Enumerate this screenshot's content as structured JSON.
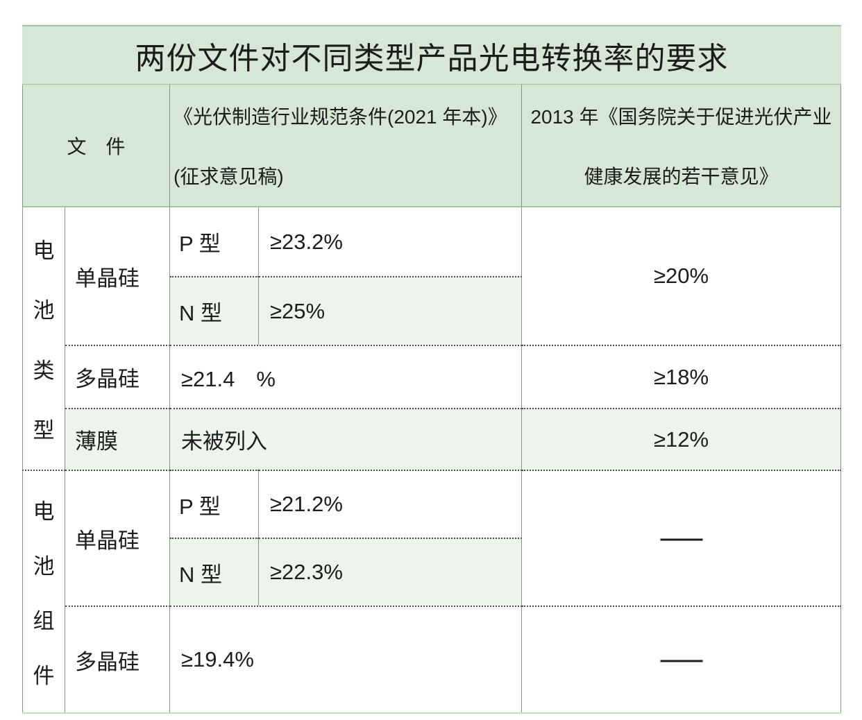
{
  "title": "两份文件对不同类型产品光电转换率的要求",
  "header": {
    "files_label": "文　件",
    "doc_2021_line1": "《光伏制造行业规范条件(2021 年本)》",
    "doc_2021_line2": "(征求意见稿)",
    "doc_2013_line1": "2013 年《国务院关于促进光伏产业",
    "doc_2013_line2": "健康发展的若干意见》"
  },
  "battery_cells": {
    "category": [
      "电",
      "池",
      "类",
      "型"
    ],
    "mono_label": "单晶硅",
    "p_label": "P 型",
    "p_value": "≥23.2%",
    "n_label": "N 型",
    "n_value": "≥25%",
    "mono_req_2013": "≥20%",
    "poly_label": "多晶硅",
    "poly_value": "≥21.4　%",
    "poly_req_2013": "≥18%",
    "thin_label": "薄膜",
    "thin_value": "未被列入",
    "thin_req_2013": "≥12%"
  },
  "battery_modules": {
    "category": [
      "电",
      "池",
      "组",
      "件"
    ],
    "mono_label": "单晶硅",
    "p_label": "P 型",
    "p_value": "≥21.2%",
    "n_label": "N 型",
    "n_value": "≥22.3%",
    "mono_req_2013": "——",
    "poly_label": "多晶硅",
    "poly_value": "≥19.4%",
    "poly_req_2013": "——"
  },
  "colors": {
    "header_green": "#d7e7d5",
    "band_green": "#edf4ec",
    "border_green": "#9dc49c",
    "border_gray": "#8f8f8f",
    "text": "#1c1c1c"
  },
  "chart_data": {
    "type": "table",
    "title": "两份文件对不同类型产品光电转换率的要求",
    "columns": [
      "文件",
      "《光伏制造行业规范条件(2021 年本)》(征求意见稿)",
      "2013 年《国务院关于促进光伏产业健康发展的若干意见》"
    ],
    "rows": [
      {
        "category": "电池类型",
        "product": "单晶硅",
        "subtype": "P 型",
        "doc_2021": "≥23.2%",
        "doc_2013": "≥20%"
      },
      {
        "category": "电池类型",
        "product": "单晶硅",
        "subtype": "N 型",
        "doc_2021": "≥25%",
        "doc_2013": "≥20%"
      },
      {
        "category": "电池类型",
        "product": "多晶硅",
        "subtype": "",
        "doc_2021": "≥21.4%",
        "doc_2013": "≥18%"
      },
      {
        "category": "电池类型",
        "product": "薄膜",
        "subtype": "",
        "doc_2021": "未被列入",
        "doc_2013": "≥12%"
      },
      {
        "category": "电池组件",
        "product": "单晶硅",
        "subtype": "P 型",
        "doc_2021": "≥21.2%",
        "doc_2013": "——"
      },
      {
        "category": "电池组件",
        "product": "单晶硅",
        "subtype": "N 型",
        "doc_2021": "≥22.3%",
        "doc_2013": "——"
      },
      {
        "category": "电池组件",
        "product": "多晶硅",
        "subtype": "",
        "doc_2021": "≥19.4%",
        "doc_2013": "——"
      }
    ]
  }
}
